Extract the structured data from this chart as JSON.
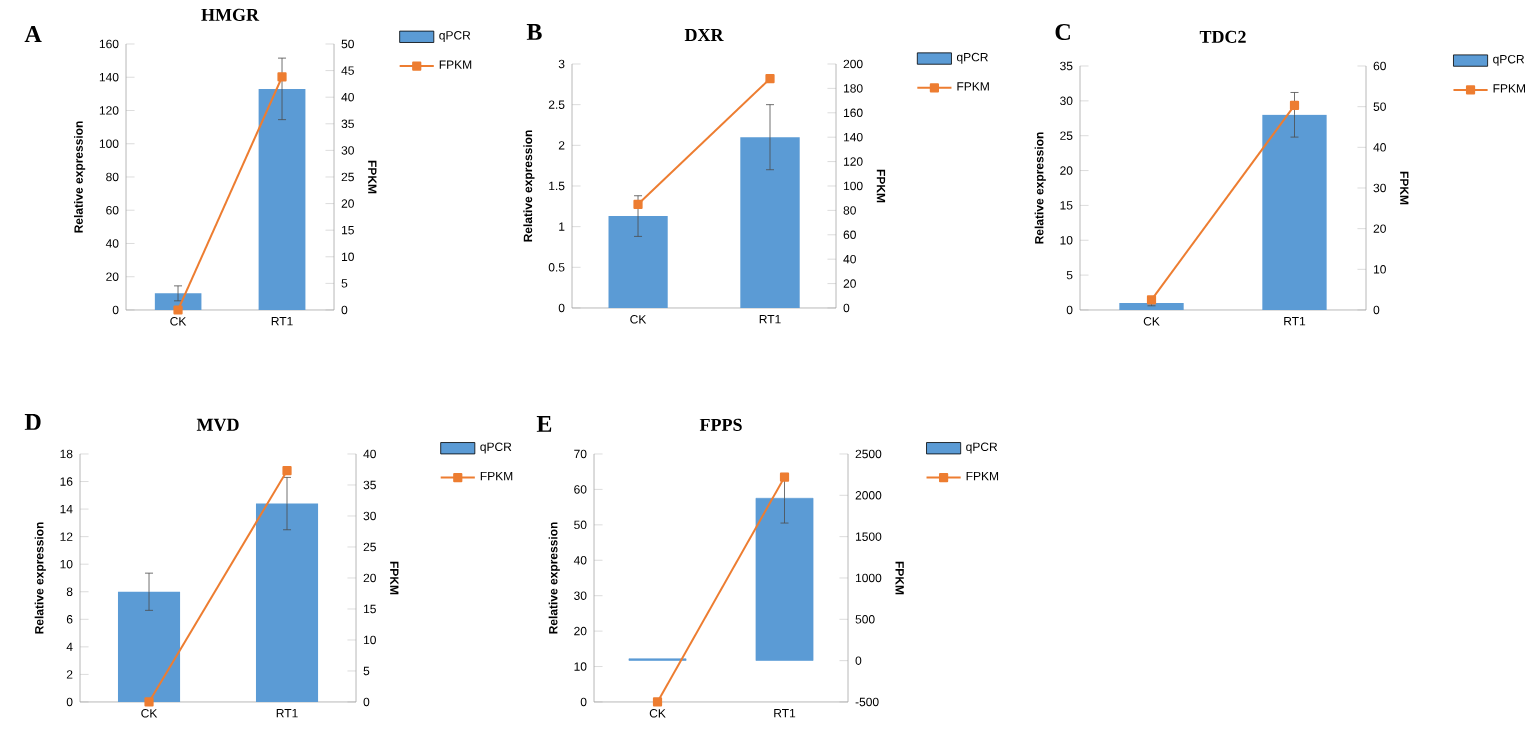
{
  "chart_data": [
    {
      "type": "bar",
      "title": "HMGR",
      "annotations": [
        "A"
      ],
      "ylabel": "Relative expression",
      "y2label": "FPKM",
      "categories": [
        "CK",
        "RT1"
      ],
      "ylim": [
        0,
        160
      ],
      "yticks": [
        0,
        20,
        40,
        60,
        80,
        100,
        120,
        140,
        160
      ],
      "y2lim": [
        0,
        50
      ],
      "y2ticks": [
        0,
        5,
        10,
        15,
        20,
        25,
        30,
        35,
        40,
        45,
        50
      ],
      "legend": "top right",
      "marker": "square",
      "series": [
        {
          "name": "qPCR",
          "type": "bar",
          "color": "#5b9bd5",
          "values": [
            10,
            133
          ],
          "errors": [
            4.5,
            18.5
          ]
        },
        {
          "name": "FPKM",
          "type": "line",
          "axis": "y2",
          "color": "#ed7d31",
          "values": [
            0,
            43.8
          ]
        }
      ]
    },
    {
      "type": "bar",
      "title": "DXR",
      "annotations": [
        "B"
      ],
      "ylabel": "Relative expression",
      "y2label": "FPKM",
      "categories": [
        "CK",
        "RT1"
      ],
      "ylim": [
        0,
        3
      ],
      "yticks": [
        0,
        0.5,
        1,
        1.5,
        2,
        2.5,
        3
      ],
      "y2lim": [
        0,
        200
      ],
      "y2ticks": [
        0,
        20,
        40,
        60,
        80,
        100,
        120,
        140,
        160,
        180,
        200
      ],
      "legend": "top right",
      "marker": "square",
      "series": [
        {
          "name": "qPCR",
          "type": "bar",
          "color": "#5b9bd5",
          "values": [
            1.13,
            2.1
          ],
          "errors": [
            0.25,
            0.4
          ]
        },
        {
          "name": "FPKM",
          "type": "line",
          "axis": "y2",
          "color": "#ed7d31",
          "values": [
            85,
            188
          ]
        }
      ]
    },
    {
      "type": "bar",
      "title": "TDC2",
      "annotations": [
        "C"
      ],
      "ylabel": "Relative expression",
      "y2label": "FPKM",
      "categories": [
        "CK",
        "RT1"
      ],
      "ylim": [
        0,
        35
      ],
      "yticks": [
        0,
        5,
        10,
        15,
        20,
        25,
        30,
        35
      ],
      "y2lim": [
        0,
        60
      ],
      "y2ticks": [
        0,
        10,
        20,
        30,
        40,
        50,
        60
      ],
      "legend": "top right",
      "marker": "square",
      "series": [
        {
          "name": "qPCR",
          "type": "bar",
          "color": "#5b9bd5",
          "values": [
            1,
            28
          ],
          "errors": [
            0.4,
            3.2
          ]
        },
        {
          "name": "FPKM",
          "type": "line",
          "axis": "y2",
          "color": "#ed7d31",
          "values": [
            2.5,
            50.3
          ]
        }
      ]
    },
    {
      "type": "bar",
      "title": "MVD",
      "annotations": [
        "D"
      ],
      "ylabel": "Relative expression",
      "y2label": "FPKM",
      "categories": [
        "CK",
        "RT1"
      ],
      "ylim": [
        0,
        18
      ],
      "yticks": [
        0,
        2,
        4,
        6,
        8,
        10,
        12,
        14,
        16,
        18
      ],
      "y2lim": [
        0,
        40
      ],
      "y2ticks": [
        0,
        5,
        10,
        15,
        20,
        25,
        30,
        35,
        40
      ],
      "legend": "top right",
      "marker": "square",
      "series": [
        {
          "name": "qPCR",
          "type": "bar",
          "color": "#5b9bd5",
          "values": [
            8,
            14.4
          ],
          "errors": [
            1.35,
            1.9
          ]
        },
        {
          "name": "FPKM",
          "type": "line",
          "axis": "y2",
          "color": "#ed7d31",
          "values": [
            0,
            37.3
          ]
        }
      ]
    },
    {
      "type": "bar",
      "title": "FPPS",
      "annotations": [
        "E"
      ],
      "ylabel": "Relative expression",
      "y2label": "FPKM",
      "categories": [
        "CK",
        "RT1"
      ],
      "ylim": [
        0,
        70
      ],
      "yticks": [
        0,
        10,
        20,
        30,
        40,
        50,
        60,
        70
      ],
      "y2lim": [
        -500,
        2500
      ],
      "y2ticks": [
        -500,
        0,
        500,
        1000,
        1500,
        2000,
        2500
      ],
      "legend": "top right",
      "marker": "square",
      "series": [
        {
          "name": "qPCR",
          "type": "bar",
          "color": "#5b9bd5",
          "values": [
            0.5,
            45.8
          ],
          "base": [
            11.7,
            11.7
          ],
          "errors": [
            null,
            7
          ]
        },
        {
          "name": "FPKM",
          "type": "line",
          "axis": "y2",
          "color": "#ed7d31",
          "values": [
            -500,
            2220
          ]
        }
      ]
    }
  ]
}
